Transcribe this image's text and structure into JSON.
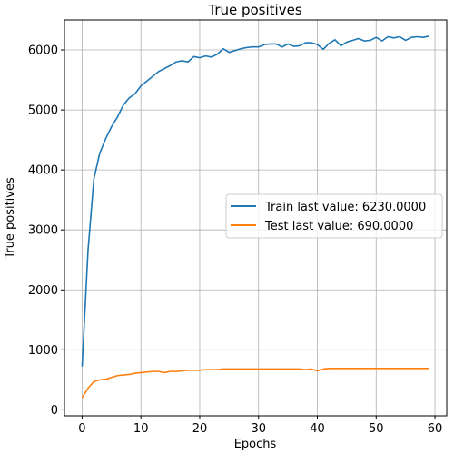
{
  "chart_data": {
    "type": "line",
    "title": "True positives",
    "xlabel": "Epochs",
    "ylabel": "True positives",
    "xlim": [
      -3,
      62
    ],
    "ylim": [
      -100,
      6500
    ],
    "xticks": [
      0,
      10,
      20,
      30,
      40,
      50,
      60
    ],
    "yticks": [
      0,
      1000,
      2000,
      3000,
      4000,
      5000,
      6000
    ],
    "grid": true,
    "legend_position": "center-right",
    "series": [
      {
        "name": "Train last value: 6230.0000",
        "color": "#1f77b4",
        "x": [
          0,
          1,
          2,
          3,
          4,
          5,
          6,
          7,
          8,
          9,
          10,
          11,
          12,
          13,
          14,
          15,
          16,
          17,
          18,
          19,
          20,
          21,
          22,
          23,
          24,
          25,
          26,
          27,
          28,
          29,
          30,
          31,
          32,
          33,
          34,
          35,
          36,
          37,
          38,
          39,
          40,
          41,
          42,
          43,
          44,
          45,
          46,
          47,
          48,
          49,
          50,
          51,
          52,
          53,
          54,
          55,
          56,
          57,
          58,
          59
        ],
        "values": [
          720,
          2650,
          3850,
          4280,
          4520,
          4720,
          4880,
          5080,
          5200,
          5270,
          5400,
          5480,
          5560,
          5640,
          5690,
          5740,
          5800,
          5820,
          5800,
          5890,
          5870,
          5900,
          5880,
          5930,
          6020,
          5960,
          5990,
          6020,
          6040,
          6050,
          6050,
          6090,
          6100,
          6100,
          6050,
          6100,
          6060,
          6070,
          6120,
          6120,
          6090,
          6010,
          6110,
          6170,
          6070,
          6130,
          6160,
          6190,
          6150,
          6160,
          6210,
          6150,
          6220,
          6200,
          6220,
          6160,
          6210,
          6220,
          6210,
          6230
        ]
      },
      {
        "name": "Test last value: 690.0000",
        "color": "#ff7f0e",
        "x": [
          0,
          1,
          2,
          3,
          4,
          5,
          6,
          7,
          8,
          9,
          10,
          11,
          12,
          13,
          14,
          15,
          16,
          17,
          18,
          19,
          20,
          21,
          22,
          23,
          24,
          25,
          26,
          27,
          28,
          29,
          30,
          31,
          32,
          33,
          34,
          35,
          36,
          37,
          38,
          39,
          40,
          41,
          42,
          43,
          44,
          45,
          46,
          47,
          48,
          49,
          50,
          51,
          52,
          53,
          54,
          55,
          56,
          57,
          58,
          59
        ],
        "values": [
          200,
          360,
          470,
          500,
          510,
          540,
          570,
          580,
          590,
          610,
          620,
          630,
          640,
          640,
          620,
          640,
          640,
          650,
          660,
          660,
          660,
          670,
          670,
          670,
          680,
          680,
          680,
          680,
          680,
          680,
          680,
          680,
          680,
          680,
          680,
          680,
          680,
          680,
          670,
          680,
          650,
          680,
          690,
          690,
          690,
          690,
          690,
          690,
          690,
          690,
          690,
          690,
          690,
          690,
          690,
          690,
          690,
          690,
          690,
          690
        ]
      }
    ]
  }
}
